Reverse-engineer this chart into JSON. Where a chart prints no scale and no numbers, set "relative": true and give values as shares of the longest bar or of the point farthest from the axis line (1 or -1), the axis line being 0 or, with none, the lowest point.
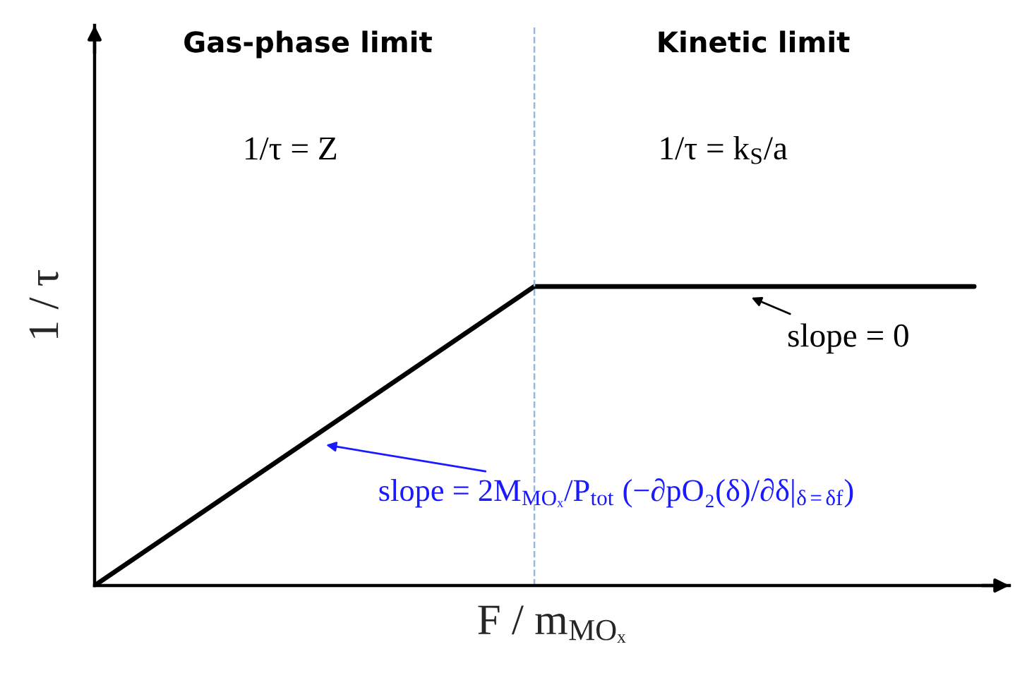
{
  "chart_data": {
    "type": "line",
    "relative": true,
    "xlabel": "F / m$_{MOₓ}$",
    "ylabel": "1 / τ",
    "categories": [
      null,
      null,
      null
    ],
    "series": [
      {
        "color": "#000000",
        "values": [
          0,
          1,
          1
        ]
      }
    ],
    "annotations": [
      "Gas-phase limit",
      "Kinetic limit",
      "1/τ = Z",
      "1/τ = k$_{S}$/a",
      "slope = 0",
      "slope = 2M$_{MOₓ}$/P$_{tot}$ (−∂pO₂(δ)/∂δ|$_{δ=δf}$)"
    ],
    "grid": false,
    "legend": false,
    "marker": "none",
    "line_style": "solid"
  }
}
